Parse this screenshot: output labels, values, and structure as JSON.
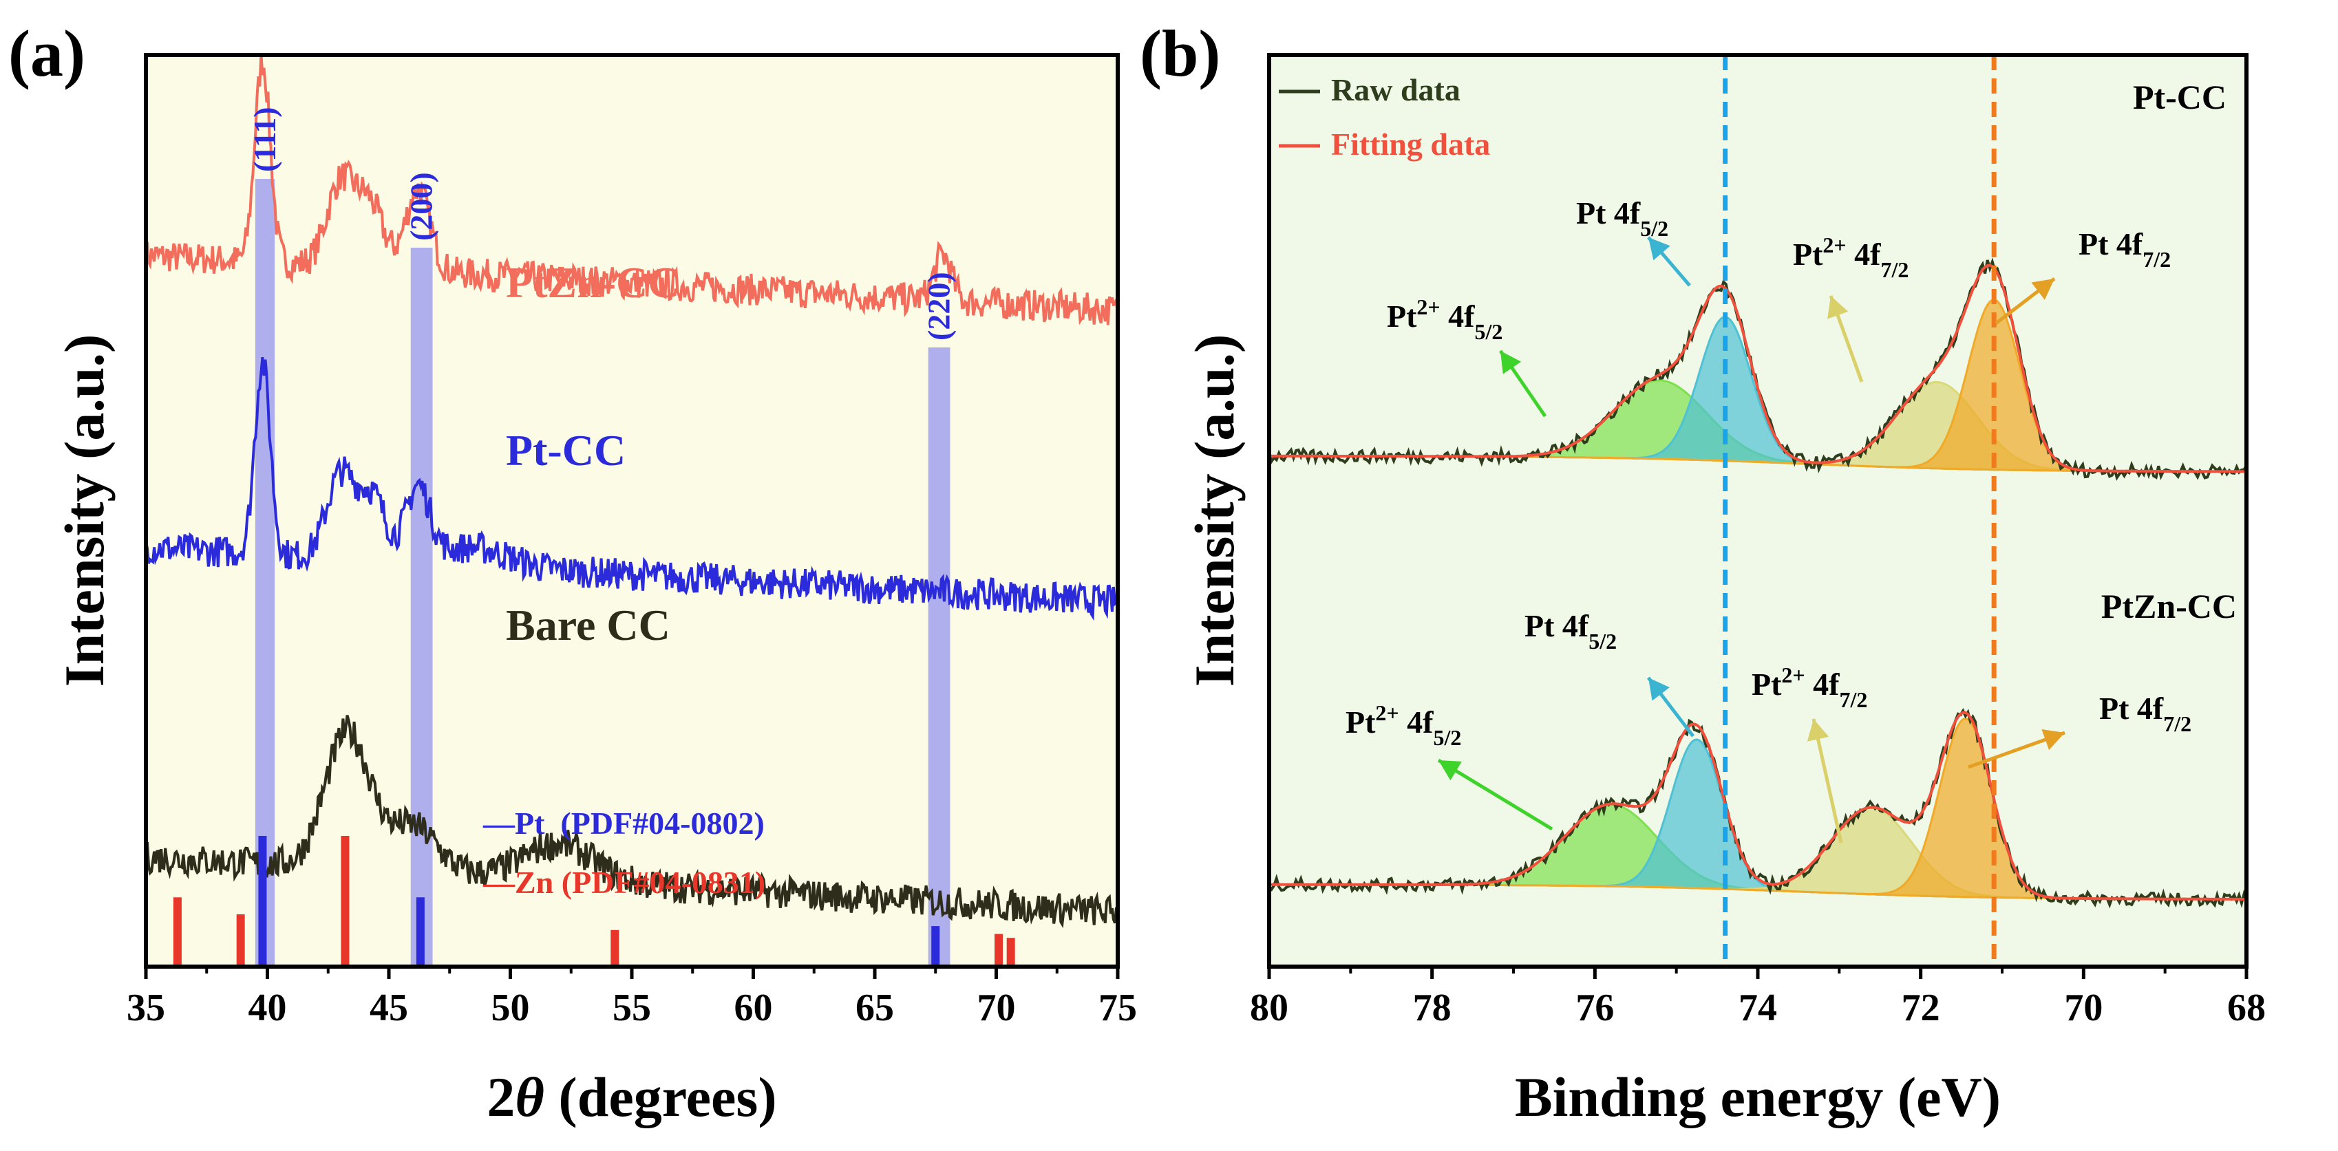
{
  "chart_data": [
    {
      "panel_label": "(a)",
      "type": "line",
      "xlabel_main": "2",
      "xlabel_italic": "θ",
      "xlabel_rest": " (degrees)",
      "ylabel": "Intensity (a.u.)",
      "xlim": [
        35,
        75
      ],
      "xticks": [
        "35",
        "40",
        "45",
        "50",
        "55",
        "60",
        "65",
        "70",
        "75"
      ],
      "background": "#fbfbe6",
      "highlights": [
        {
          "label": "(111)",
          "from": 39.5,
          "to": 40.3
        },
        {
          "label": "(200)",
          "from": 45.9,
          "to": 46.8
        },
        {
          "label": "(220)",
          "from": 67.2,
          "to": 68.1
        }
      ],
      "highlight_color": "#8f8ff0",
      "series": [
        {
          "name": "PtZn-CC",
          "color": "#f26d5b",
          "offset": 0.72,
          "base_start": 0.99,
          "base_end": 0.87,
          "peaks": [
            [
              39.8,
              0.22,
              0.45
            ],
            [
              43.0,
              0.09,
              0.8
            ],
            [
              44.2,
              0.07,
              0.8
            ],
            [
              46.2,
              0.09,
              0.7
            ],
            [
              67.8,
              0.05,
              0.5
            ]
          ]
        },
        {
          "name": "Pt-CC",
          "color": "#2b2bdc",
          "offset": 0.4,
          "base_start": 0.99,
          "base_end": 0.86,
          "peaks": [
            [
              39.8,
              0.21,
              0.45
            ],
            [
              43.0,
              0.09,
              0.8
            ],
            [
              44.3,
              0.07,
              0.8
            ],
            [
              46.2,
              0.08,
              0.7
            ],
            [
              48.5,
              0.02,
              2.0
            ]
          ]
        },
        {
          "name": "Bare CC",
          "color": "#2e2d1c",
          "offset": 0.06,
          "base_start": 0.97,
          "base_end": 0.87,
          "peaks": [
            [
              43.3,
              0.15,
              1.3
            ],
            [
              46.0,
              0.05,
              1.4
            ],
            [
              52.0,
              0.04,
              2.0
            ]
          ]
        }
      ],
      "reference_legend": [
        {
          "text": "—Pt  (PDF#04-0802)",
          "color": "#2b2bdc"
        },
        {
          "text": "—Zn (PDF#04-0831)",
          "color": "#e8372a"
        }
      ],
      "reference_lines": [
        {
          "material": "Zn",
          "color": "#e8372a",
          "positions": [
            36.3,
            38.9,
            43.2,
            54.3,
            70.1,
            70.6
          ],
          "heights": [
            0.53,
            0.4,
            1.0,
            0.28,
            0.25,
            0.22
          ]
        },
        {
          "material": "Pt",
          "color": "#2b2bdc",
          "positions": [
            39.8,
            46.3,
            67.5
          ],
          "heights": [
            1.0,
            0.53,
            0.31
          ]
        }
      ]
    },
    {
      "panel_label": "(b)",
      "type": "line",
      "xlabel": "Binding energy (eV)",
      "ylabel": "Intensity (a.u.)",
      "xlim": [
        80,
        68
      ],
      "xticks": [
        "80",
        "78",
        "76",
        "74",
        "72",
        "70",
        "68"
      ],
      "background": "#f0f8e8",
      "legend": [
        {
          "label": "Raw data",
          "color": "#2e3e1c"
        },
        {
          "label": "Fitting data",
          "color": "#f0503c"
        }
      ],
      "vlines": [
        {
          "x": 74.4,
          "color": "#1aa3e8",
          "style": "dashed"
        },
        {
          "x": 71.1,
          "color": "#f07a1c",
          "style": "dashed"
        }
      ],
      "panels": [
        {
          "name": "Pt-CC",
          "components": [
            {
              "label_main": "Pt",
              "label_sup": "2+",
              "label_mid": " 4f",
              "label_sub": "5/2",
              "center": 75.2,
              "height": 0.3,
              "width": 0.8,
              "color": "#7ee04e",
              "arrow_color": "#3dd32a"
            },
            {
              "label_main": "Pt",
              "label_sup": "",
              "label_mid": " 4f",
              "label_sub": "5/2",
              "center": 74.4,
              "height": 0.55,
              "width": 0.45,
              "color": "#4fc1d4",
              "arrow_color": "#3ab4d1"
            },
            {
              "label_main": "Pt",
              "label_sup": "2+",
              "label_mid": " 4f",
              "label_sub": "7/2",
              "center": 71.8,
              "height": 0.33,
              "width": 0.7,
              "color": "#d9d97a",
              "arrow_color": "#d9d06a"
            },
            {
              "label_main": "Pt",
              "label_sup": "",
              "label_mid": " 4f",
              "label_sub": "7/2",
              "center": 71.1,
              "height": 0.65,
              "width": 0.45,
              "color": "#f0aa28",
              "arrow_color": "#e3a024"
            }
          ]
        },
        {
          "name": "PtZn-CC",
          "components": [
            {
              "label_main": "Pt",
              "label_sup": "2+",
              "label_mid": " 4f",
              "label_sub": "5/2",
              "center": 75.8,
              "height": 0.33,
              "width": 0.8,
              "color": "#7ee04e",
              "arrow_color": "#3dd32a"
            },
            {
              "label_main": "Pt",
              "label_sup": "",
              "label_mid": " 4f",
              "label_sub": "5/2",
              "center": 74.75,
              "height": 0.6,
              "width": 0.45,
              "color": "#4fc1d4",
              "arrow_color": "#3ab4d1"
            },
            {
              "label_main": "Pt",
              "label_sup": "2+",
              "label_mid": " 4f",
              "label_sub": "7/2",
              "center": 72.6,
              "height": 0.35,
              "width": 0.7,
              "color": "#d9d97a",
              "arrow_color": "#d9d06a"
            },
            {
              "label_main": "Pt",
              "label_sup": "",
              "label_mid": " 4f",
              "label_sub": "7/2",
              "center": 71.45,
              "height": 0.72,
              "width": 0.45,
              "color": "#f0aa28",
              "arrow_color": "#e3a024"
            }
          ]
        }
      ]
    }
  ]
}
